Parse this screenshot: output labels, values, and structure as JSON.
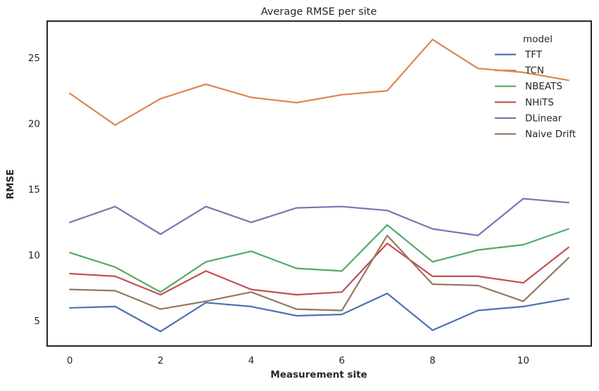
{
  "chart_data": {
    "type": "line",
    "title": "Average RMSE per site",
    "xlabel": "Measurement site",
    "ylabel": "RMSE",
    "legend_title": "model",
    "legend_position": "upper right inside plot",
    "grid": false,
    "x": [
      0,
      1,
      2,
      3,
      4,
      5,
      6,
      7,
      8,
      9,
      10,
      11
    ],
    "xticks": [
      0,
      2,
      4,
      6,
      8,
      10
    ],
    "yticks": [
      5,
      10,
      15,
      20,
      25
    ],
    "xlim": [
      -0.5,
      11.5
    ],
    "ylim": [
      3.1,
      27.8
    ],
    "series": [
      {
        "name": "TFT",
        "color": "#4C72B0",
        "values": [
          6.0,
          6.1,
          4.2,
          6.4,
          6.1,
          5.4,
          5.5,
          7.1,
          4.3,
          5.8,
          6.1,
          6.7
        ]
      },
      {
        "name": "TCN",
        "color": "#DD8452",
        "values": [
          22.3,
          19.9,
          21.9,
          23.0,
          22.0,
          21.6,
          22.2,
          22.5,
          26.4,
          24.2,
          23.9,
          23.3
        ]
      },
      {
        "name": "NBEATS",
        "color": "#55A868",
        "values": [
          10.2,
          9.1,
          7.2,
          9.5,
          10.3,
          9.0,
          8.8,
          12.3,
          9.5,
          10.4,
          10.8,
          12.0
        ]
      },
      {
        "name": "NHiTS",
        "color": "#C44E52",
        "values": [
          8.6,
          8.4,
          7.0,
          8.8,
          7.4,
          7.0,
          7.2,
          10.9,
          8.4,
          8.4,
          7.9,
          10.6
        ]
      },
      {
        "name": "DLinear",
        "color": "#8172B3",
        "values": [
          12.5,
          13.7,
          11.6,
          13.7,
          12.5,
          13.6,
          13.7,
          13.4,
          12.0,
          11.5,
          14.3,
          14.0
        ]
      },
      {
        "name": "Naive Drift",
        "color": "#937860",
        "values": [
          7.4,
          7.3,
          5.9,
          6.5,
          7.2,
          5.9,
          5.8,
          11.5,
          7.8,
          7.7,
          6.5,
          9.8
        ]
      }
    ]
  },
  "frame": {
    "background": "#ffffff",
    "spine_color": "#262626",
    "text_color": "#262626"
  }
}
